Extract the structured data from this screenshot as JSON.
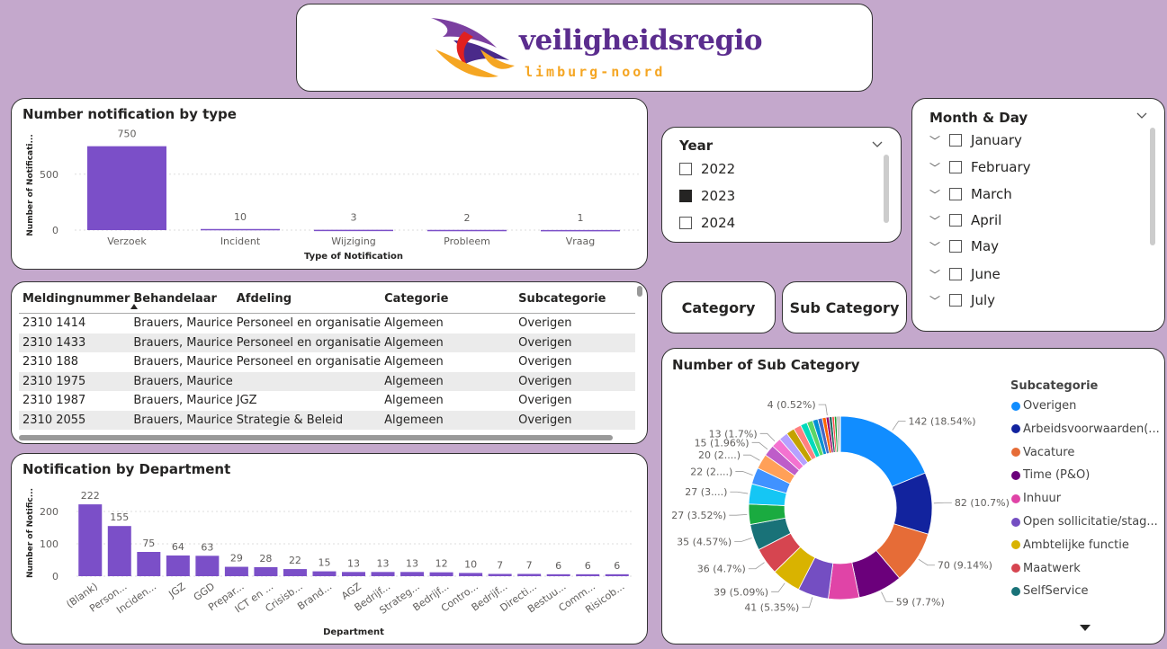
{
  "logo": {
    "main": "veiligheidsregio",
    "sub": "limburg-noord"
  },
  "type_chart": {
    "title": "Number notification by type",
    "xlabel": "Type of Notification",
    "ylabel": "Number of Notificati...",
    "yticks": [
      "0",
      "500"
    ],
    "chart_data": {
      "type": "bar",
      "categories": [
        "Verzoek",
        "Incident",
        "Wijziging",
        "Probleem",
        "Vraag"
      ],
      "values": [
        750,
        10,
        3,
        2,
        1
      ],
      "ylim": [
        0,
        900
      ],
      "grid": true
    }
  },
  "year_slicer": {
    "title": "Year",
    "items": [
      {
        "label": "2022",
        "checked": false
      },
      {
        "label": "2023",
        "checked": true
      },
      {
        "label": "2024",
        "checked": false
      }
    ]
  },
  "month_slicer": {
    "title": "Month & Day",
    "items": [
      "January",
      "February",
      "March",
      "April",
      "May",
      "June",
      "July"
    ]
  },
  "buttons": {
    "category": "Category",
    "sub_category": "Sub Category"
  },
  "table": {
    "columns": [
      "Meldingnummer",
      "Behandelaar",
      "Afdeling",
      "Categorie",
      "Subcategorie"
    ],
    "rows": [
      [
        "2310 1414",
        "Brauers, Maurice",
        "Personeel en organisatie",
        "Algemeen",
        "Overigen"
      ],
      [
        "2310 1433",
        "Brauers, Maurice",
        "Personeel en organisatie",
        "Algemeen",
        "Overigen"
      ],
      [
        "2310 188",
        "Brauers, Maurice",
        "Personeel en organisatie",
        "Algemeen",
        "Overigen"
      ],
      [
        "2310 1975",
        "Brauers, Maurice",
        "",
        "Algemeen",
        "Overigen"
      ],
      [
        "2310 1987",
        "Brauers, Maurice",
        "JGZ",
        "Algemeen",
        "Overigen"
      ],
      [
        "2310 2055",
        "Brauers, Maurice",
        "Strategie & Beleid",
        "Algemeen",
        "Overigen"
      ]
    ]
  },
  "dept_chart": {
    "title": "Notification by Department",
    "xlabel": "Department",
    "ylabel": "Number of Notific...",
    "yticks": [
      "0",
      "100",
      "200"
    ],
    "chart_data": {
      "type": "bar",
      "categories": [
        "(Blank)",
        "Person...",
        "Inciden...",
        "JGZ",
        "GGD",
        "Prepar...",
        "ICT en ...",
        "Crisisb...",
        "Brand...",
        "AGZ",
        "Bedrijf...",
        "Strateg...",
        "Bedrijf...",
        "Contro...",
        "Bedrijf...",
        "Directi...",
        "Bestuu...",
        "Comm...",
        "Risicob..."
      ],
      "values": [
        222,
        155,
        75,
        64,
        63,
        29,
        28,
        22,
        15,
        13,
        13,
        13,
        12,
        10,
        7,
        7,
        6,
        6,
        6
      ],
      "ylim": [
        0,
        250
      ],
      "grid": true
    }
  },
  "sub_chart": {
    "title": "Number of Sub Category",
    "legend_title": "Subcategorie",
    "legend": [
      {
        "name": "Overigen",
        "color": "#118DFF"
      },
      {
        "name": "Arbeidsvoorwaarden(...",
        "color": "#12239E"
      },
      {
        "name": "Vacature",
        "color": "#E66C37"
      },
      {
        "name": "Time (P&O)",
        "color": "#6B007B"
      },
      {
        "name": "Inhuur",
        "color": "#E044A7"
      },
      {
        "name": "Open sollicitatie/stag...",
        "color": "#744EC2"
      },
      {
        "name": "Ambtelijke functie",
        "color": "#D9B300"
      },
      {
        "name": "Maatwerk",
        "color": "#D64550"
      },
      {
        "name": "SelfService",
        "color": "#197278"
      }
    ],
    "chart_data": {
      "type": "pie",
      "total": 766,
      "slices": [
        {
          "value": 142,
          "label": "142 (18.54%)",
          "color": "#118DFF"
        },
        {
          "value": 82,
          "label": "82 (10.7%)",
          "color": "#12239E"
        },
        {
          "value": 70,
          "label": "70 (9.14%)",
          "color": "#E66C37"
        },
        {
          "value": 59,
          "label": "59 (7.7%)",
          "color": "#6B007B"
        },
        {
          "value": 41,
          "label": "",
          "color": "#E044A7"
        },
        {
          "value": 41,
          "label": "41 (5.35%)",
          "color": "#744EC2"
        },
        {
          "value": 39,
          "label": "39 (5.09%)",
          "color": "#D9B300"
        },
        {
          "value": 36,
          "label": "36 (4.7%)",
          "color": "#D64550"
        },
        {
          "value": 35,
          "label": "35 (4.57%)",
          "color": "#197278"
        },
        {
          "value": 27,
          "label": "27 (3.52%)",
          "color": "#1AAB40"
        },
        {
          "value": 27,
          "label": "27 (3....)",
          "color": "#15C6F4"
        },
        {
          "value": 22,
          "label": "22 (2....)",
          "color": "#4092FF"
        },
        {
          "value": 20,
          "label": "20 (2....)",
          "color": "#FFA058"
        },
        {
          "value": 15,
          "label": "15 (1.96%)",
          "color": "#BE5DC9"
        },
        {
          "value": 13,
          "label": "13 (1.7%)",
          "color": "#F472D0"
        },
        {
          "value": 12,
          "label": "",
          "color": "#B5A1FF"
        },
        {
          "value": 11,
          "label": "",
          "color": "#C4A200"
        },
        {
          "value": 10,
          "label": "",
          "color": "#FF8080"
        },
        {
          "value": 9,
          "label": "",
          "color": "#00DBBC"
        },
        {
          "value": 8,
          "label": "",
          "color": "#5BD667"
        },
        {
          "value": 7,
          "label": "",
          "color": "#0091D5"
        },
        {
          "value": 6,
          "label": "",
          "color": "#4668C5"
        },
        {
          "value": 5,
          "label": "",
          "color": "#FF6300"
        },
        {
          "value": 4,
          "label": "4 (0.52%)",
          "color": "#99006A"
        },
        {
          "value": 4,
          "label": "",
          "color": "#206D5F"
        },
        {
          "value": 3,
          "label": "",
          "color": "#FF4B4B"
        },
        {
          "value": 3,
          "label": "",
          "color": "#1A9E2E"
        },
        {
          "value": 2,
          "label": "",
          "color": "#A0A0A0"
        },
        {
          "value": 2,
          "label": "",
          "color": "#5C5C5C"
        },
        {
          "value": 1,
          "label": "",
          "color": "#F2C80F"
        }
      ]
    }
  }
}
